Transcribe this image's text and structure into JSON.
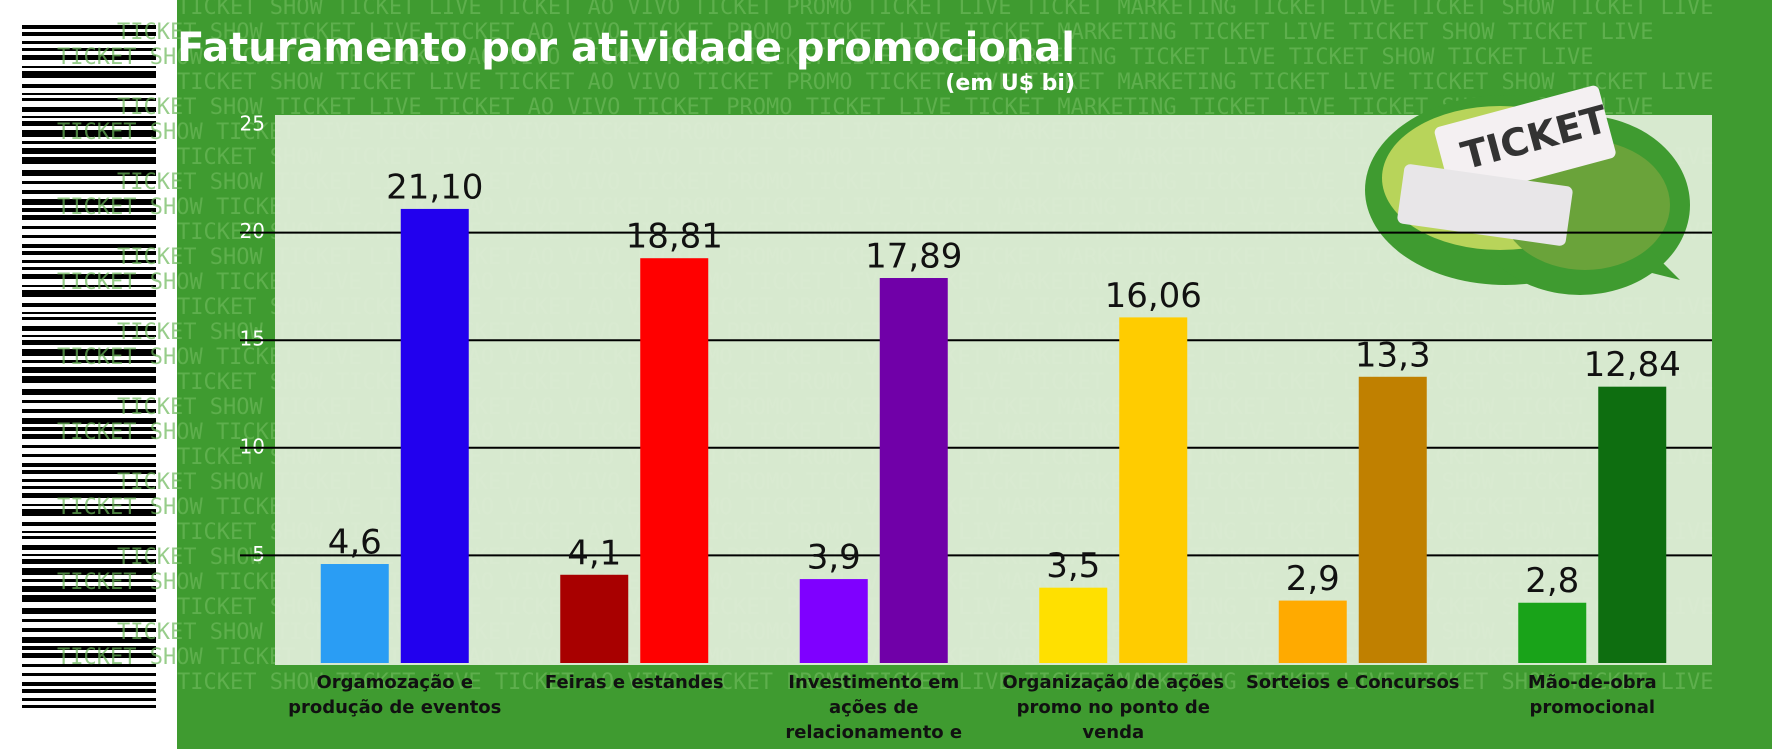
{
  "chart_data": {
    "type": "bar",
    "title": "Faturamento por atividade promocional",
    "subtitle": "(em U$ bi)",
    "background_pattern": "TICKET SHOW TICKET LIVE TICKET AO VIVO TICKET PROMO TICKET LIVE TICKET MARKETING TICKET LIVE TICKET SHOW TICKET LIVE ",
    "image_text": "TICKET",
    "categories": [
      "Orgamozação e produção de eventos",
      "Feiras e estandes",
      "Investimento em ações de relacionamento e fidelização",
      "Organização de ações promo no ponto de venda",
      "Sorteios e Concursos",
      "Mão-de-obra promocional"
    ],
    "series": [
      {
        "colors": [
          "#2a9df4",
          "#a80000",
          "#7f00ff",
          "#ffe000",
          "#ffaa00",
          "#19a319"
        ],
        "values": [
          4.6,
          4.1,
          3.9,
          3.5,
          2.9,
          2.8
        ],
        "value_labels": [
          "4,6",
          "4,1",
          "3,9",
          "3,5",
          "2,9",
          "2,8"
        ]
      },
      {
        "colors": [
          "#2200ee",
          "#ff0000",
          "#7000a8",
          "#ffcc00",
          "#c08000",
          "#0e6e10"
        ],
        "values": [
          21.1,
          18.81,
          17.89,
          16.06,
          13.3,
          12.84
        ],
        "value_labels": [
          "21,10",
          "18,81",
          "17,89",
          "16,06",
          "13,3",
          "12,84"
        ]
      }
    ],
    "ylim": [
      0,
      25
    ],
    "yticks": [
      5,
      10,
      15,
      20,
      25
    ],
    "grid": true
  }
}
